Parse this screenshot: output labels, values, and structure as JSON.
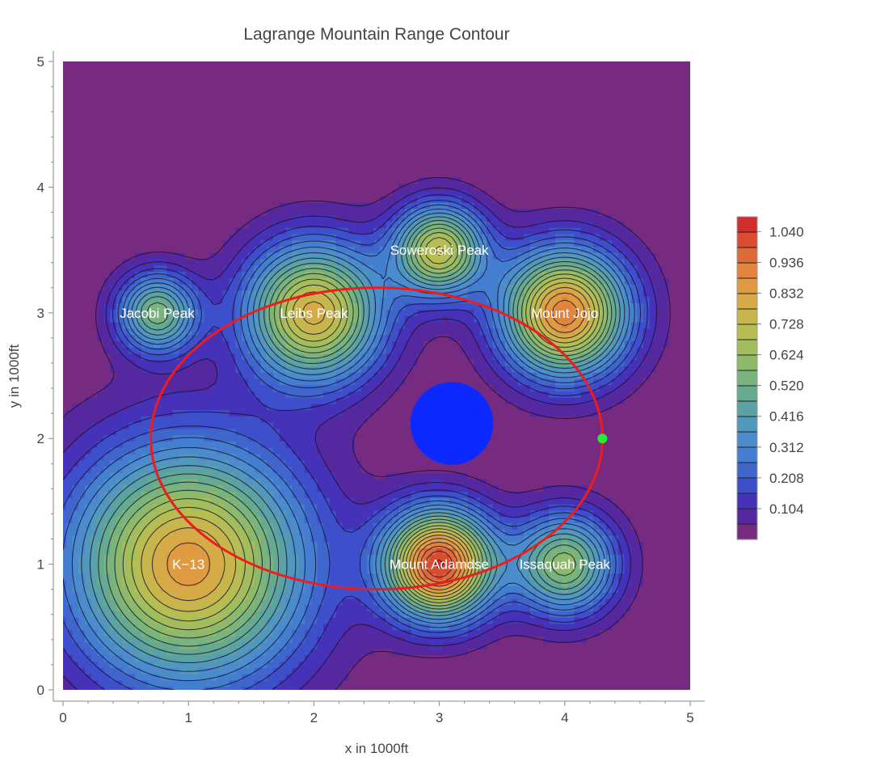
{
  "chart_data": {
    "type": "contour",
    "title": "Lagrange Mountain Range Contour",
    "xlabel": "x in 1000ft",
    "ylabel": "y in 1000ft",
    "xlim": [
      0,
      5
    ],
    "ylim": [
      0,
      5
    ],
    "x_ticks": [
      "0",
      "1",
      "2",
      "3",
      "4",
      "5"
    ],
    "y_ticks": [
      "0",
      "1",
      "2",
      "3",
      "4",
      "5"
    ],
    "peaks": [
      {
        "name": "K−13",
        "x": 1.0,
        "y": 1.0,
        "height": 0.86,
        "sigma": 0.65
      },
      {
        "name": "Jacobi Peak",
        "x": 0.75,
        "y": 3.0,
        "height": 0.55,
        "sigma": 0.22
      },
      {
        "name": "Leibs Peak",
        "x": 2.0,
        "y": 3.0,
        "height": 0.8,
        "sigma": 0.38
      },
      {
        "name": "Soweroski Peak",
        "x": 3.0,
        "y": 3.5,
        "height": 0.72,
        "sigma": 0.25
      },
      {
        "name": "Mount Jojo",
        "x": 4.0,
        "y": 3.0,
        "height": 0.92,
        "sigma": 0.35
      },
      {
        "name": "Mount Adamdse",
        "x": 3.0,
        "y": 1.0,
        "height": 1.04,
        "sigma": 0.3
      },
      {
        "name": "Issaquah Peak",
        "x": 4.0,
        "y": 1.0,
        "height": 0.6,
        "sigma": 0.28
      }
    ],
    "legend": {
      "position": "right",
      "labels": [
        "1.040",
        "0.936",
        "0.832",
        "0.728",
        "0.624",
        "0.520",
        "0.416",
        "0.312",
        "0.208",
        "0.104"
      ],
      "levels": 20,
      "zmax": 1.09
    },
    "colors": [
      "#772b80",
      "#5528a0",
      "#4632b8",
      "#3e4fcc",
      "#3f66cc",
      "#447ed0",
      "#4a8ccc",
      "#5298bc",
      "#5aa2a4",
      "#66ab90",
      "#78b47c",
      "#8cba6a",
      "#a2be5c",
      "#b6bd52",
      "#c8b64c",
      "#d6aa46",
      "#e09a42",
      "#e2843d",
      "#df6a37",
      "#da4c30",
      "#d42c2a"
    ],
    "ellipse": {
      "cx": 2.5,
      "cy": 2.0,
      "rx": 1.8,
      "ry": 1.2,
      "color": "#ee1c1c"
    },
    "disc": {
      "cx": 3.1,
      "cy": 2.12,
      "r": 0.33,
      "color": "#0c2aff"
    },
    "point": {
      "x": 4.3,
      "y": 2.0,
      "color": "#22ee33"
    }
  }
}
